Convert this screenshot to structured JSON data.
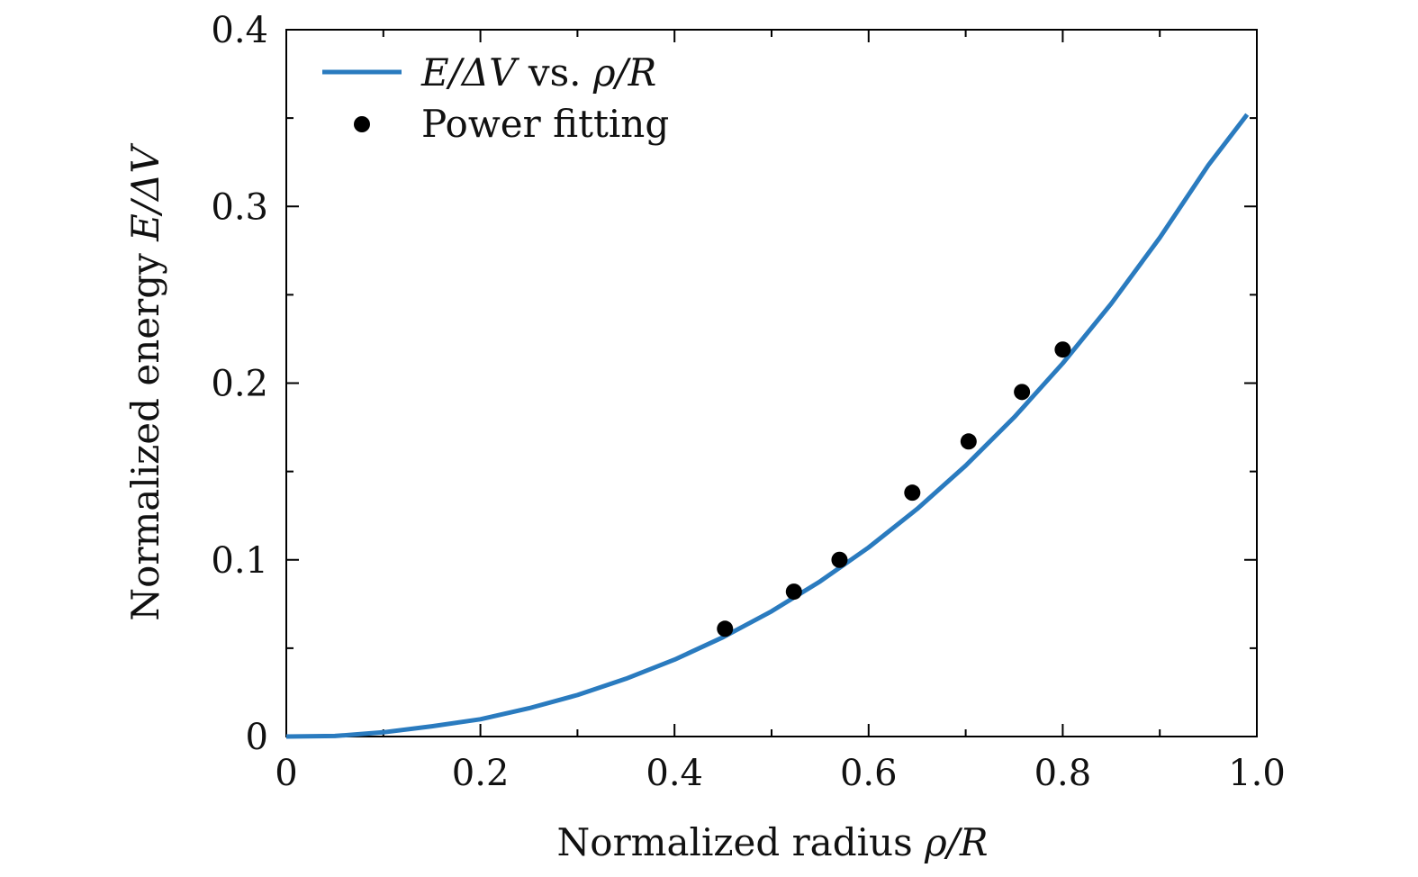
{
  "chart_data": {
    "type": "line",
    "title": "",
    "xlabel": "Normalized radius ρ/R",
    "ylabel": "Normalized energy E/ΔV",
    "xlabel_text": "Normalized radius ",
    "xlabel_math": "ρ/R",
    "ylabel_text": "Normalized energy ",
    "ylabel_math": "E/ΔV",
    "xlim": [
      0,
      1.0
    ],
    "ylim": [
      0,
      0.4
    ],
    "x_ticks": [
      0,
      0.2,
      0.4,
      0.6,
      0.8,
      1.0
    ],
    "x_tick_labels": [
      "0",
      "0.2",
      "0.4",
      "0.6",
      "0.8",
      "1.0"
    ],
    "x_minor_ticks": [
      0.1,
      0.3,
      0.5,
      0.7,
      0.9
    ],
    "y_ticks": [
      0,
      0.1,
      0.2,
      0.3,
      0.4
    ],
    "y_tick_labels": [
      "0",
      "0.1",
      "0.2",
      "0.3",
      "0.4"
    ],
    "y_minor_ticks": [
      0.05,
      0.15,
      0.25,
      0.35
    ],
    "legend_position": "top-left",
    "series": [
      {
        "name": "E/ΔV vs. ρ/R",
        "legend_math": "E/ΔV",
        "legend_text": " vs. ",
        "legend_math2": "ρ/R",
        "kind": "line",
        "color": "#2a7bbf",
        "x": [
          0,
          0.05,
          0.1,
          0.15,
          0.2,
          0.25,
          0.3,
          0.35,
          0.4,
          0.45,
          0.5,
          0.55,
          0.6,
          0.65,
          0.7,
          0.75,
          0.8,
          0.85,
          0.9,
          0.95,
          0.99
        ],
        "y": [
          0,
          0.0003,
          0.0024,
          0.0058,
          0.0098,
          0.016,
          0.0235,
          0.0327,
          0.0435,
          0.0562,
          0.0709,
          0.0878,
          0.107,
          0.1288,
          0.1533,
          0.1807,
          0.2112,
          0.245,
          0.2823,
          0.3233,
          0.352
        ]
      },
      {
        "name": "Power fitting",
        "legend_text": "Power fitting",
        "kind": "scatter",
        "color": "#000000",
        "x": [
          0.452,
          0.523,
          0.57,
          0.645,
          0.703,
          0.758,
          0.8
        ],
        "y": [
          0.061,
          0.082,
          0.1,
          0.138,
          0.167,
          0.195,
          0.219
        ]
      }
    ]
  }
}
